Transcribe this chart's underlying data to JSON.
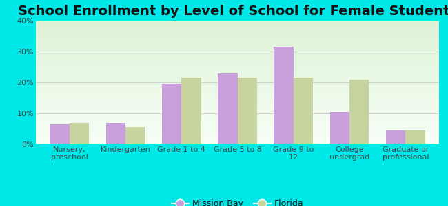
{
  "title": "School Enrollment by Level of School for Female Students",
  "categories": [
    "Nursery,\npreschool",
    "Kindergarten",
    "Grade 1 to 4",
    "Grade 5 to 8",
    "Grade 9 to\n12",
    "College\nundergrad",
    "Graduate or\nprofessional"
  ],
  "mission_bay": [
    6.5,
    7.0,
    19.5,
    23.0,
    31.5,
    10.5,
    4.5
  ],
  "florida": [
    7.0,
    5.5,
    21.5,
    21.5,
    21.5,
    21.0,
    4.5
  ],
  "mission_bay_color": "#c9a0dc",
  "florida_color": "#c8d4a0",
  "background_color": "#00e8e8",
  "ylabel": "",
  "ylim": [
    0,
    40
  ],
  "yticks": [
    0,
    10,
    20,
    30,
    40
  ],
  "ytick_labels": [
    "0%",
    "10%",
    "20%",
    "30%",
    "40%"
  ],
  "title_fontsize": 14,
  "legend_mission_bay": "Mission Bay",
  "legend_florida": "Florida",
  "bar_width": 0.35,
  "grid_color": "#cccccc",
  "tick_label_color": "#444444",
  "axis_label_fontsize": 8
}
